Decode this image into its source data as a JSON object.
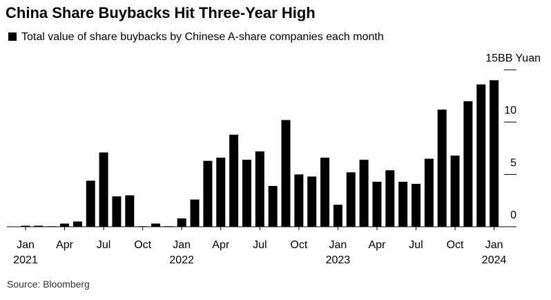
{
  "chart_data": {
    "type": "bar",
    "title": "China Share Buybacks Hit Three-Year High",
    "subtitle": "Total value of share buybacks by Chinese A-share companies each month",
    "source": "Source: Bloomberg",
    "color": "#000000",
    "categories": [
      "Jan 2021",
      null,
      null,
      "Apr",
      null,
      null,
      "Jul",
      null,
      null,
      "Oct",
      null,
      null,
      "Jan 2022",
      null,
      null,
      "Apr",
      null,
      null,
      "Jul",
      null,
      null,
      "Oct",
      null,
      null,
      "Jan 2023",
      null,
      null,
      "Apr",
      null,
      null,
      "Jul",
      null,
      null,
      "Oct",
      null,
      null,
      "Jan 2024"
    ],
    "values": [
      0.1,
      0.1,
      0.05,
      0.3,
      0.5,
      4.4,
      7.1,
      2.9,
      3.0,
      0.05,
      0.3,
      0.05,
      0.8,
      2.6,
      6.3,
      6.6,
      8.8,
      6.4,
      7.2,
      3.9,
      10.2,
      5.0,
      4.8,
      6.6,
      2.1,
      5.2,
      6.4,
      4.3,
      5.4,
      4.3,
      4.1,
      6.5,
      11.2,
      6.8,
      12.0,
      13.6,
      14.0
    ],
    "ylim": [
      0,
      15
    ],
    "yticks": [
      0,
      5,
      10,
      {
        "value": 15,
        "label": "15BB Yuan"
      }
    ],
    "y_axis_side": "right",
    "grid": false
  }
}
